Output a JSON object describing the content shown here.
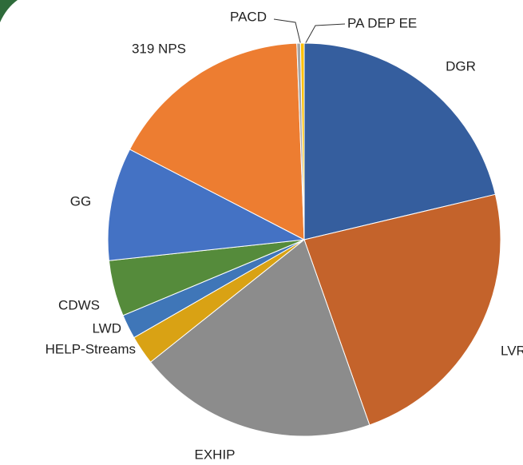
{
  "chart_data": {
    "type": "pie",
    "categories": [
      "DGR",
      "LVR",
      "EXHIP",
      "HELP-Streams",
      "LWD",
      "CDWS",
      "GG",
      "319 NPS",
      "PACD",
      "PA DEP EE"
    ],
    "values": [
      21.3,
      23.3,
      19.7,
      2.4,
      2.0,
      4.6,
      9.3,
      16.8,
      0.3,
      0.3
    ],
    "colors": [
      "#355e9e",
      "#c4632b",
      "#8c8c8c",
      "#d9a214",
      "#3f76b8",
      "#558b3b",
      "#4472c4",
      "#ed7d31",
      "#a5a5a5",
      "#ffc000"
    ]
  }
}
